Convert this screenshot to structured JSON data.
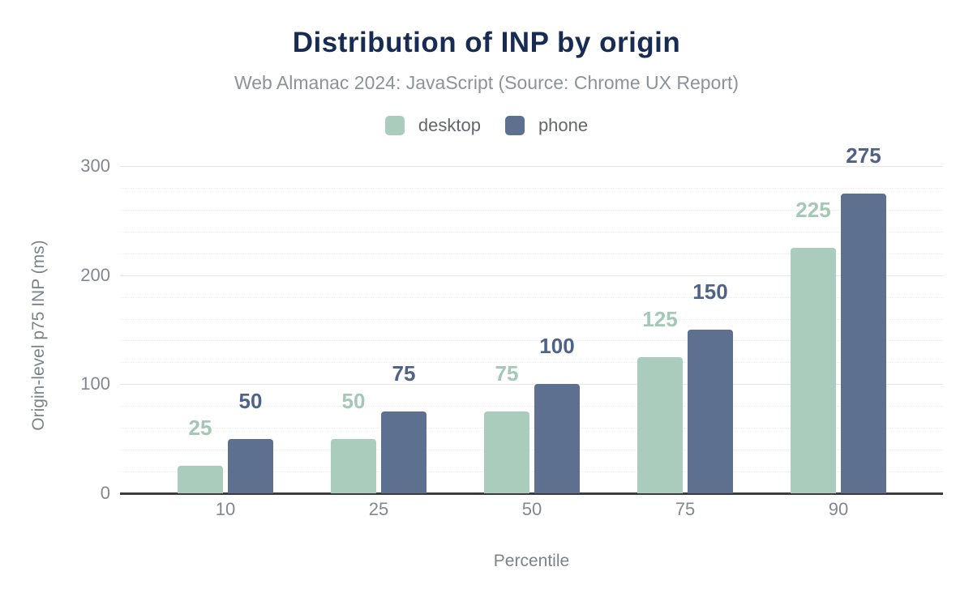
{
  "title": "Distribution of INP by origin",
  "subtitle": "Web Almanac 2024: JavaScript (Source: Chrome UX Report)",
  "legend": {
    "items": [
      {
        "label": "desktop",
        "color": "#a9ccbc"
      },
      {
        "label": "phone",
        "color": "#5e7090"
      }
    ]
  },
  "colors": {
    "background": "#ffffff",
    "title": "#182b52",
    "subtitle": "#8d929a",
    "tick_label": "#83878e",
    "axis_title": "#7d828a",
    "axis_line": "#3c3c3e",
    "gridline_major": "#e6e6e6",
    "gridline_minor": "#ededed",
    "desktop_bar": "#a9ccbc",
    "desktop_value_label": "#a3c8b5",
    "phone_bar": "#5e7090",
    "phone_value_label": "#4e6387"
  },
  "chart_data": {
    "type": "bar",
    "title": "Distribution of INP by origin",
    "subtitle": "Web Almanac 2024: JavaScript (Source: Chrome UX Report)",
    "categories": [
      "10",
      "25",
      "50",
      "75",
      "90"
    ],
    "series": [
      {
        "name": "desktop",
        "color": "#a9ccbc",
        "label_color": "#a3c8b5",
        "values": [
          25,
          50,
          75,
          125,
          225
        ]
      },
      {
        "name": "phone",
        "color": "#5e7090",
        "label_color": "#4e6387",
        "values": [
          50,
          75,
          100,
          150,
          275
        ]
      }
    ],
    "xlabel": "Percentile",
    "ylabel": "Origin-level p75 INP (ms)",
    "ylim": [
      0,
      300
    ],
    "yticks": [
      0,
      100,
      200,
      300
    ],
    "minor_grid_step": 20,
    "grid": "major-solid-minor-dotted",
    "legend_position": "top",
    "value_labels": "above-bars-in-series-color"
  }
}
